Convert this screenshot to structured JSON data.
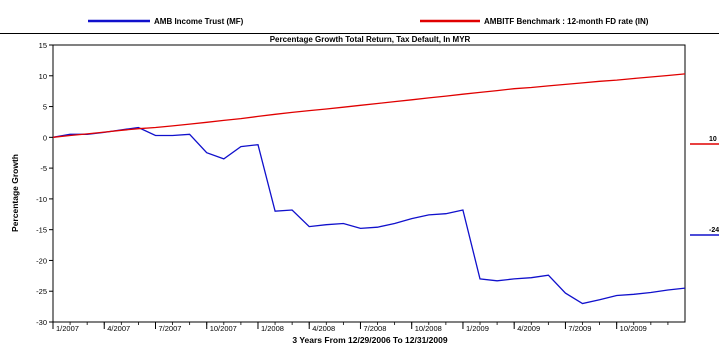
{
  "legend": {
    "items": [
      {
        "label": "AMB Income Trust (MF)",
        "color": "#1010cc"
      },
      {
        "label": "AMBITF Benchmark : 12-month FD rate (IN)",
        "color": "#e00000"
      }
    ]
  },
  "chart_data": {
    "type": "line",
    "title": "Percentage Growth Total Return, Tax Default, In MYR",
    "xlabel": "3 Years From 12/29/2006 To 12/31/2009",
    "ylabel": "Percentage Growth",
    "ylim": [
      -30,
      15
    ],
    "yticks": [
      15,
      10,
      5,
      0,
      -5,
      -10,
      -15,
      -20,
      -25,
      -30
    ],
    "xticks": [
      {
        "label": "1/2007",
        "month": 0
      },
      {
        "label": "4/2007",
        "month": 3
      },
      {
        "label": "7/2007",
        "month": 6
      },
      {
        "label": "10/2007",
        "month": 9
      },
      {
        "label": "1/2008",
        "month": 12
      },
      {
        "label": "4/2008",
        "month": 15
      },
      {
        "label": "7/2008",
        "month": 18
      },
      {
        "label": "10/2008",
        "month": 21
      },
      {
        "label": "1/2009",
        "month": 24
      },
      {
        "label": "4/2009",
        "month": 27
      },
      {
        "label": "7/2009",
        "month": 30
      },
      {
        "label": "10/2009",
        "month": 33
      }
    ],
    "xrange": [
      -0.5,
      36.5
    ],
    "grid": false,
    "legend_position": "top",
    "series": [
      {
        "name": "AMB Income Trust (MF)",
        "color": "#1010cc",
        "end_label": "-24",
        "x": [
          -0.5,
          0.5,
          1.5,
          2.5,
          3.5,
          4.5,
          5.5,
          6.5,
          7.5,
          8.5,
          9.5,
          10.5,
          11.5,
          12.5,
          13.5,
          14.5,
          15.5,
          16.5,
          17.5,
          18.5,
          19.5,
          20.5,
          21.5,
          22.5,
          23.5,
          24.5,
          25.5,
          26.5,
          27.5,
          28.5,
          29.5,
          30.5,
          31.5,
          32.5,
          33.5,
          34.5,
          35.5,
          36.5
        ],
        "y": [
          0,
          0.5,
          0.5,
          0.8,
          1.2,
          1.6,
          0.3,
          0.3,
          0.5,
          -2.5,
          -3.5,
          -1.5,
          -1.2,
          -12,
          -11.8,
          -14.5,
          -14.2,
          -14,
          -14.8,
          -14.6,
          -14,
          -13.2,
          -12.6,
          -12.4,
          -11.8,
          -23,
          -23.3,
          -23,
          -22.8,
          -22.4,
          -25.3,
          -27,
          -26.4,
          -25.7,
          -25.5,
          -25.2,
          -24.8,
          -24.5
        ]
      },
      {
        "name": "AMBITF Benchmark : 12-month FD rate (IN)",
        "color": "#e00000",
        "end_label": "10",
        "x": [
          -0.5,
          0.5,
          1.5,
          2.5,
          3.5,
          4.5,
          5.5,
          6.5,
          7.5,
          8.5,
          9.5,
          10.5,
          11.5,
          12.5,
          13.5,
          14.5,
          15.5,
          16.5,
          17.5,
          18.5,
          19.5,
          20.5,
          21.5,
          22.5,
          23.5,
          24.5,
          25.5,
          26.5,
          27.5,
          28.5,
          29.5,
          30.5,
          31.5,
          32.5,
          33.5,
          34.5,
          35.5,
          36.5
        ],
        "y": [
          0,
          0.3,
          0.55,
          0.85,
          1.15,
          1.4,
          1.6,
          1.85,
          2.15,
          2.45,
          2.75,
          3.05,
          3.4,
          3.75,
          4.05,
          4.35,
          4.6,
          4.9,
          5.2,
          5.5,
          5.8,
          6.1,
          6.4,
          6.7,
          7.0,
          7.3,
          7.6,
          7.9,
          8.1,
          8.35,
          8.6,
          8.85,
          9.1,
          9.3,
          9.55,
          9.8,
          10.05,
          10.3
        ]
      }
    ]
  }
}
